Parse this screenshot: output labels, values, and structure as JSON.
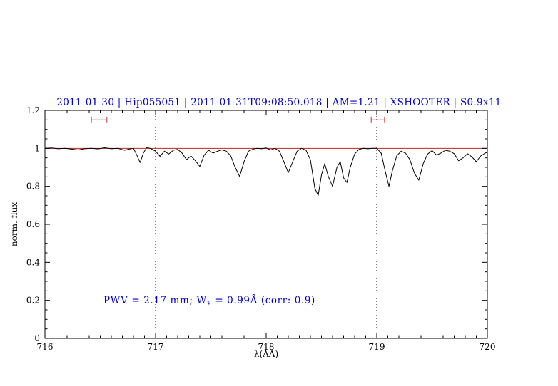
{
  "title": {
    "text": "2011-01-30 | Hip055051 | 2011-01-31T09:08:50.018 | AM=1.21 | XSHOOTER | S0.9x11",
    "color": "#0000cd"
  },
  "annotation": {
    "prefix": "PWV = 2.17 mm; W",
    "sub": "λ",
    "suffix": " = 0.99Å (corr: 0.9)",
    "color": "#0000cd"
  },
  "chart_data": {
    "type": "line",
    "title": "2011-01-30 | Hip055051 | 2011-01-31T09:08:50.018 | AM=1.21 | XSHOOTER | S0.9x11",
    "xlabel": "λ(AA)",
    "ylabel": "norm. flux",
    "xlim": [
      716,
      720
    ],
    "ylim": [
      0,
      1.2
    ],
    "grid": false,
    "x_tick_values": [
      716,
      717,
      718,
      719,
      720
    ],
    "x_tick_labels": [
      "716",
      "717",
      "718",
      "719",
      "720"
    ],
    "x_minor_step": 0.1,
    "y_tick_values": [
      0,
      0.2,
      0.4,
      0.6,
      0.8,
      1,
      1.2
    ],
    "y_tick_labels": [
      "0",
      "0.2",
      "0.4",
      "0.6",
      "0.8",
      "1",
      "1.2"
    ],
    "y_minor_step": 0.05,
    "continuum_line": {
      "y": 1.0,
      "color": "#cc2222"
    },
    "dotted_lines_x": [
      717,
      719
    ],
    "marker_color": "#cc5555",
    "range_markers": [
      {
        "x1": 716.42,
        "x2": 716.56,
        "y": 1.15
      },
      {
        "x1": 718.95,
        "x2": 719.07,
        "y": 1.15
      }
    ],
    "series": [
      {
        "name": "spectrum",
        "color": "#000000",
        "x": [
          716.0,
          716.06,
          716.12,
          716.18,
          716.24,
          716.3,
          716.36,
          716.42,
          716.48,
          716.54,
          716.6,
          716.66,
          716.72,
          716.76,
          716.8,
          716.83,
          716.86,
          716.89,
          716.92,
          716.96,
          717.0,
          717.04,
          717.08,
          717.12,
          717.16,
          717.2,
          717.24,
          717.28,
          717.32,
          717.36,
          717.4,
          717.44,
          717.48,
          717.52,
          717.56,
          717.6,
          717.64,
          717.68,
          717.72,
          717.76,
          717.8,
          717.84,
          717.88,
          717.92,
          717.96,
          718.0,
          718.04,
          718.08,
          718.12,
          718.16,
          718.2,
          718.24,
          718.28,
          718.32,
          718.36,
          718.4,
          718.44,
          718.47,
          718.5,
          718.53,
          718.56,
          718.6,
          718.64,
          718.67,
          718.7,
          718.73,
          718.76,
          718.8,
          718.84,
          718.88,
          718.92,
          718.96,
          719.0,
          719.04,
          719.08,
          719.11,
          719.14,
          719.18,
          719.22,
          719.26,
          719.3,
          719.34,
          719.38,
          719.42,
          719.46,
          719.5,
          719.54,
          719.58,
          719.62,
          719.66,
          719.7,
          719.74,
          719.78,
          719.82,
          719.86,
          719.9,
          719.94,
          719.98,
          720.0
        ],
        "y": [
          1.0,
          1.002,
          0.998,
          1.0,
          0.996,
          0.992,
          0.998,
          1.0,
          0.997,
          1.003,
          0.998,
          1.0,
          0.99,
          0.996,
          1.0,
          0.965,
          0.925,
          0.975,
          1.005,
          0.998,
          0.985,
          0.958,
          0.985,
          0.97,
          0.99,
          0.995,
          0.975,
          0.94,
          0.96,
          0.935,
          0.905,
          0.965,
          0.99,
          0.975,
          0.985,
          0.992,
          0.985,
          0.96,
          0.9,
          0.852,
          0.93,
          0.985,
          0.996,
          1.0,
          0.998,
          1.002,
          0.992,
          1.0,
          0.985,
          0.93,
          0.872,
          0.93,
          0.985,
          1.0,
          0.99,
          0.94,
          0.79,
          0.752,
          0.86,
          0.92,
          0.855,
          0.8,
          0.9,
          0.93,
          0.845,
          0.82,
          0.9,
          0.97,
          0.995,
          1.0,
          0.998,
          1.0,
          1.0,
          0.975,
          0.87,
          0.8,
          0.88,
          0.96,
          0.985,
          0.975,
          0.94,
          0.87,
          0.832,
          0.92,
          0.97,
          0.988,
          0.965,
          0.975,
          0.99,
          0.985,
          0.972,
          0.935,
          0.95,
          0.972,
          0.955,
          0.93,
          0.96,
          0.975,
          0.98
        ]
      }
    ]
  }
}
